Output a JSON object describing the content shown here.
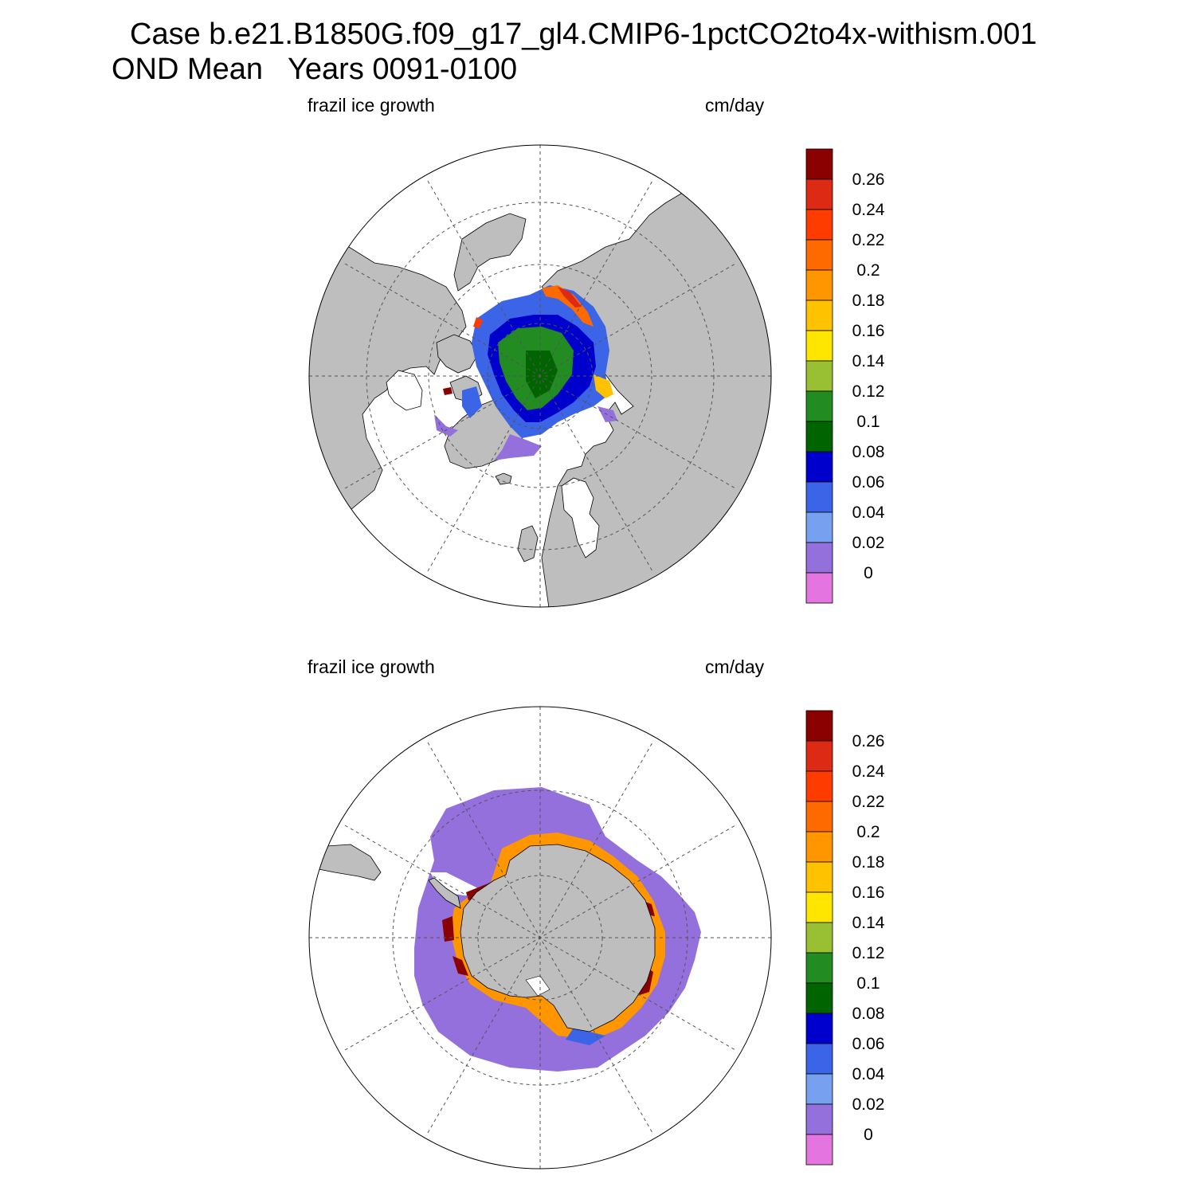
{
  "title": {
    "line1": "Case b.e21.B1850G.f09_g17_gl4.CMIP6-1pctCO2to4x-withism.001",
    "line2": "OND Mean   Years 0091-0100"
  },
  "panels": [
    {
      "id": "north",
      "hemisphere": "northern",
      "variable_label": "frazil ice growth",
      "units_label": "cm/day"
    },
    {
      "id": "south",
      "hemisphere": "southern",
      "variable_label": "frazil ice growth",
      "units_label": "cm/day"
    }
  ],
  "colorbar": {
    "tick_labels": [
      "0.26",
      "0.24",
      "0.22",
      "0.2",
      "0.18",
      "0.16",
      "0.14",
      "0.12",
      "0.1",
      "0.08",
      "0.06",
      "0.04",
      "0.02",
      "0"
    ],
    "colors_top_to_bottom": [
      "#8b0000",
      "#dc2a14",
      "#ff3c00",
      "#ff6a00",
      "#ff9600",
      "#ffc200",
      "#ffe600",
      "#98c032",
      "#228b22",
      "#006400",
      "#0000cd",
      "#3c64e6",
      "#78a0f0",
      "#9370db",
      "#e475e0"
    ]
  },
  "map_colors": {
    "land": "#bebebe",
    "ocean": "#ffffff",
    "grid": "#555555"
  }
}
